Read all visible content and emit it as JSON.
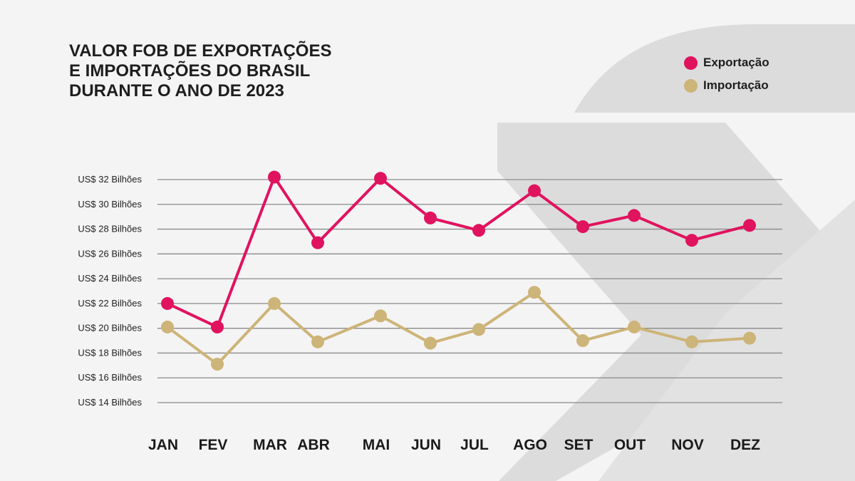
{
  "chart_data": {
    "type": "line",
    "title_lines": [
      "VALOR FOB DE EXPORTAÇÕES",
      "E IMPORTAÇÕES DO BRASIL",
      "DURANTE O ANO DE 2023"
    ],
    "categories": [
      "JAN",
      "FEV",
      "MAR",
      "ABR",
      "MAI",
      "JUN",
      "JUL",
      "AGO",
      "SET",
      "OUT",
      "NOV",
      "DEZ"
    ],
    "series": [
      {
        "name": "Exportação",
        "color": "#e0135f",
        "values": [
          22.0,
          20.1,
          32.2,
          26.9,
          32.1,
          28.9,
          27.9,
          31.1,
          28.2,
          29.1,
          27.1,
          28.3
        ]
      },
      {
        "name": "Importação",
        "color": "#cdb478",
        "values": [
          20.1,
          17.1,
          22.0,
          18.9,
          21.0,
          18.8,
          19.9,
          22.9,
          19.0,
          20.1,
          18.9,
          19.2
        ]
      }
    ],
    "y_ticks": [
      {
        "value": 32,
        "label": "US$ 32 Bilhões"
      },
      {
        "value": 30,
        "label": "US$ 30 Bilhões"
      },
      {
        "value": 28,
        "label": "US$ 28 Bilhões"
      },
      {
        "value": 26,
        "label": "US$ 26 Bilhões"
      },
      {
        "value": 24,
        "label": "US$ 24 Bilhões"
      },
      {
        "value": 22,
        "label": "US$ 22 Bilhões"
      },
      {
        "value": 20,
        "label": "US$ 20 Bilhões"
      },
      {
        "value": 18,
        "label": "US$ 18 Bilhões"
      },
      {
        "value": 16,
        "label": "US$ 16 Bilhões"
      },
      {
        "value": 14,
        "label": "US$ 14 Bilhões"
      }
    ],
    "ylim": [
      14,
      32
    ],
    "grid": true,
    "legend_position": "top-right"
  }
}
